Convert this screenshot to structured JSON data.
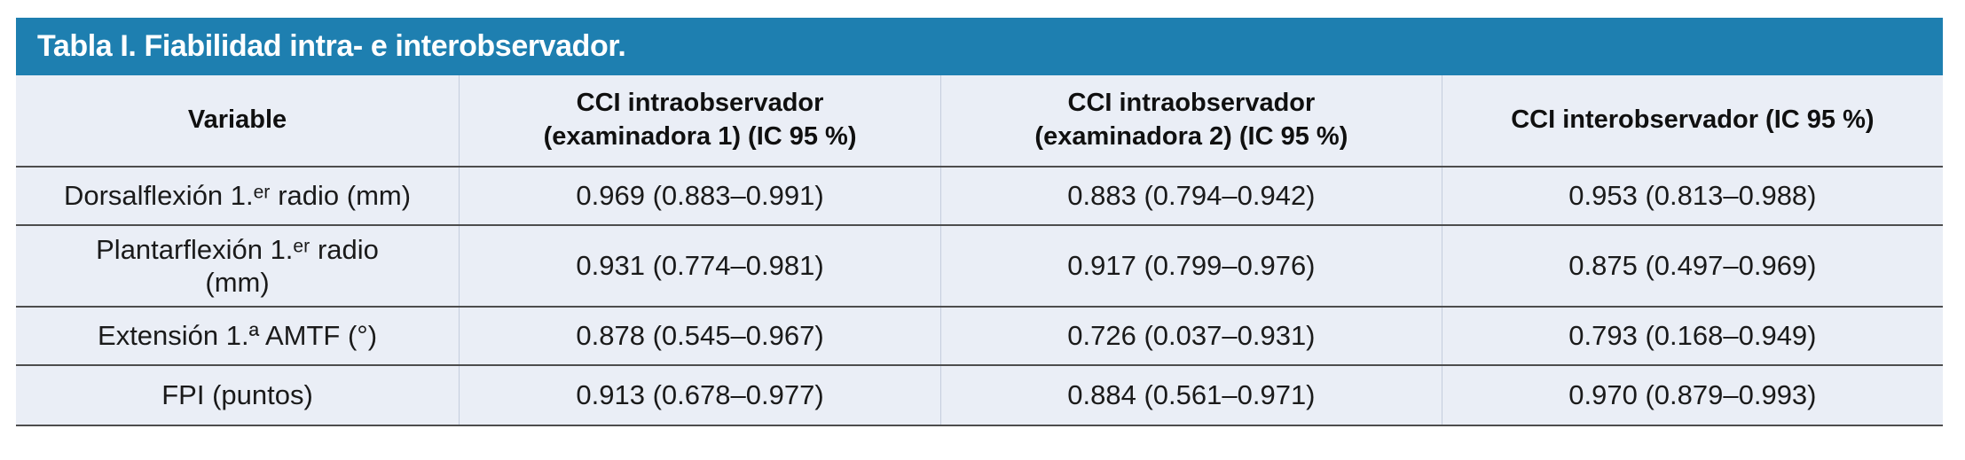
{
  "title": "Tabla I. Fiabilidad intra- e interobservador.",
  "colors": {
    "title_bar_bg": "#1E7FB0",
    "title_text": "#FFFFFF",
    "table_bg": "#EAEEF6",
    "rule_line": "#4D4D4D",
    "body_text": "#1A1A1A"
  },
  "table": {
    "headers": [
      "Variable",
      "CCI intraobservador\n(examinadora 1) (IC 95 %)",
      "CCI intraobservador\n(examinadora 2) (IC 95 %)",
      "CCI interobservador (IC 95 %)"
    ],
    "rows": [
      [
        "Dorsalflexión 1.ᵉʳ radio (mm)",
        "0.969 (0.883–0.991)",
        "0.883 (0.794–0.942)",
        "0.953 (0.813–0.988)"
      ],
      [
        "Plantarflexión 1.ᵉʳ radio\n(mm)",
        "0.931 (0.774–0.981)",
        "0.917 (0.799–0.976)",
        "0.875 (0.497–0.969)"
      ],
      [
        "Extensión 1.ª AMTF (°)",
        "0.878 (0.545–0.967)",
        "0.726 (0.037–0.931)",
        "0.793 (0.168–0.949)"
      ],
      [
        "FPI (puntos)",
        "0.913 (0.678–0.977)",
        "0.884 (0.561–0.971)",
        "0.970 (0.879–0.993)"
      ]
    ]
  }
}
